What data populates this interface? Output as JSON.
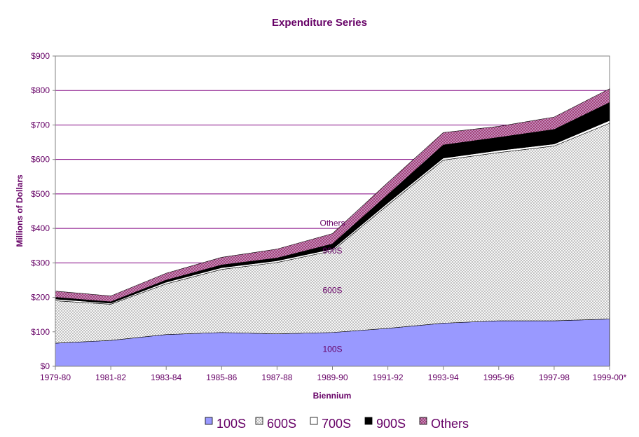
{
  "chart_data": {
    "type": "area",
    "stacked": true,
    "title": "Expenditure Series",
    "xlabel": "Biennium",
    "ylabel": "Millions of Dollars",
    "categories": [
      "1979-80",
      "1981-82",
      "1983-84",
      "1985-86",
      "1987-88",
      "1989-90",
      "1991-92",
      "1993-94",
      "1995-96",
      "1997-98",
      "1999-00*"
    ],
    "y_ticks": [
      "$0",
      "$100",
      "$200",
      "$300",
      "$400",
      "$500",
      "$600",
      "$700",
      "$800",
      "$900"
    ],
    "ylim": [
      0,
      900
    ],
    "grid": "horizontal",
    "legend_position": "bottom",
    "series": [
      {
        "name": "100S",
        "values": [
          67,
          75,
          92,
          98,
          94,
          98,
          110,
          125,
          132,
          132,
          137
        ],
        "color": "#9999ff",
        "pattern": "solid"
      },
      {
        "name": "600S",
        "values": [
          123,
          105,
          147,
          183,
          207,
          237,
          358,
          473,
          488,
          507,
          568
        ],
        "color": "#ffffff",
        "pattern": "crosshatch"
      },
      {
        "name": "700S",
        "values": [
          5,
          3,
          5,
          5,
          5,
          5,
          6,
          6,
          6,
          6,
          8
        ],
        "color": "#ffffff",
        "pattern": "solid"
      },
      {
        "name": "900S",
        "values": [
          5,
          4,
          6,
          8,
          8,
          15,
          24,
          38,
          38,
          42,
          52
        ],
        "color": "#000000",
        "pattern": "solid"
      },
      {
        "name": "Others",
        "values": [
          18,
          17,
          20,
          22,
          26,
          30,
          35,
          36,
          32,
          36,
          40
        ],
        "color": "#993366",
        "pattern": "hatch"
      }
    ],
    "series_labels": [
      {
        "text": "100S",
        "category_index": 5,
        "y": 50
      },
      {
        "text": "600S",
        "category_index": 5,
        "y": 220
      },
      {
        "text": "900S",
        "category_index": 5,
        "y": 335
      },
      {
        "text": "Others",
        "category_index": 5,
        "y": 415
      }
    ],
    "colors": {
      "text": "#660066",
      "axis": "#808080",
      "grid": "#800080",
      "tick_text": "#660066"
    }
  }
}
